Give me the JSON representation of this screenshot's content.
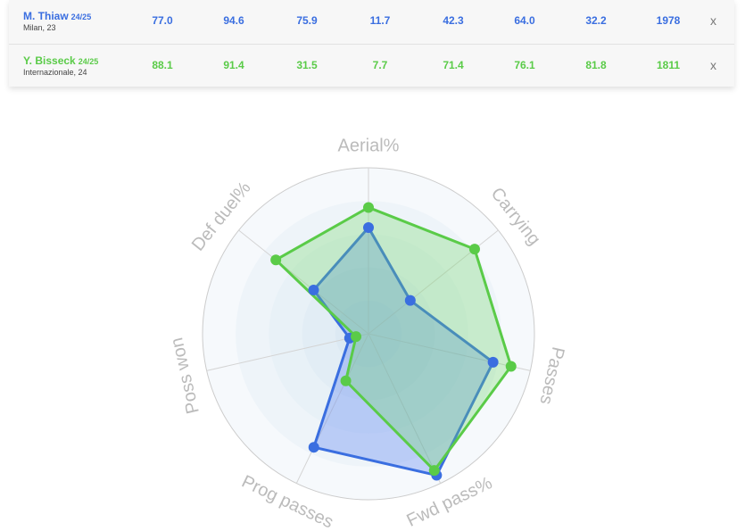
{
  "players": [
    {
      "name": "M. Thiaw",
      "season": "24/25",
      "info": "Milan, 23",
      "color": "#3a6ee0",
      "fill": "rgba(90,130,240,0.35)",
      "values": [
        77,
        94.6,
        75.9,
        11.7,
        42.3,
        64,
        32.2,
        1978
      ],
      "value_labels": [
        "77.0",
        "94.6",
        "75.9",
        "11.7",
        "42.3",
        "64.0",
        "32.2",
        "1978"
      ],
      "remove": "x"
    },
    {
      "name": "Y. Bisseck",
      "season": "24/25",
      "info": "Internazionale, 24",
      "color": "#5acb48",
      "fill": "rgba(110,215,100,0.3)",
      "values": [
        88.1,
        91.4,
        31.5,
        7.7,
        71.4,
        76.1,
        81.8,
        1811
      ],
      "value_labels": [
        "88.1",
        "91.4",
        "31.5",
        "7.7",
        "71.4",
        "76.1",
        "81.8",
        "1811"
      ],
      "remove": "x"
    }
  ],
  "radar": {
    "type": "radar",
    "axes": [
      "Aerial%",
      "Carrying",
      "Passes",
      "Fwd pass%",
      "Prog passes",
      "Poss won",
      "Def duel%"
    ],
    "rlim": [
      0,
      100
    ]
  }
}
